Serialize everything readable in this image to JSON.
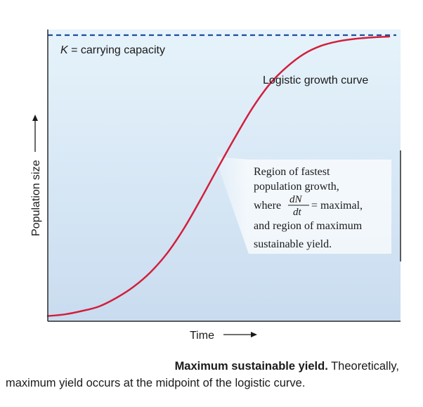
{
  "chart_data": {
    "type": "line",
    "xlabel": "Time",
    "ylabel": "Population size",
    "xlim": [
      0,
      100
    ],
    "ylim": [
      0,
      100
    ],
    "grid": false,
    "series": [
      {
        "name": "Logistic growth curve",
        "color": "#d21f3c",
        "x": [
          0,
          5,
          10,
          15,
          20,
          25,
          30,
          35,
          40,
          45,
          50,
          55,
          60,
          65,
          70,
          75,
          80,
          85,
          90,
          95,
          100
        ],
        "y": [
          0.6,
          1.2,
          2.4,
          4.0,
          7.0,
          10.9,
          16.1,
          23.0,
          32.0,
          42.6,
          53.7,
          64.5,
          74.7,
          83.1,
          89.2,
          93.8,
          96.7,
          98.3,
          99.2,
          99.7,
          100.0
        ]
      }
    ],
    "reference_lines": [
      {
        "label_var": "K",
        "label_rest": " = carrying capacity",
        "y": 100,
        "style": "dashed",
        "color": "#1f4e9c"
      }
    ],
    "annotations": [
      {
        "text": "Logistic growth curve"
      }
    ],
    "callout": {
      "line1": "Region of fastest",
      "line2": "population growth,",
      "where": "where",
      "frac_num": "dN",
      "frac_den": "dt",
      "equals": "= maximal,",
      "line4": "and region of maximum",
      "line5": "sustainable yield.",
      "highlight_x": 50
    },
    "colors": {
      "plot_bg_top": "#e6f3fb",
      "plot_bg_bottom": "#c9dcef",
      "curve": "#d21f3c",
      "capacity_line": "#1f4e9c"
    }
  },
  "caption": {
    "bold": "Maximum sustainable yield.",
    "rest": " Theoretically,",
    "line2": "maximum yield occurs at the midpoint of the logistic curve."
  }
}
